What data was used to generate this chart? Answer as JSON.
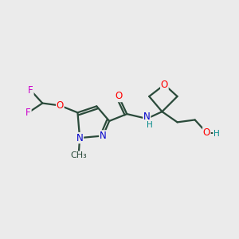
{
  "background_color": "#ebebeb",
  "bond_color": "#2a4a3a",
  "atom_colors": {
    "O": "#ff0000",
    "N": "#0000cc",
    "F": "#cc00cc",
    "H": "#008888",
    "C": "#2a4a3a"
  },
  "figsize": [
    3.0,
    3.0
  ],
  "dpi": 100,
  "bond_lw": 1.6,
  "font_size": 9
}
